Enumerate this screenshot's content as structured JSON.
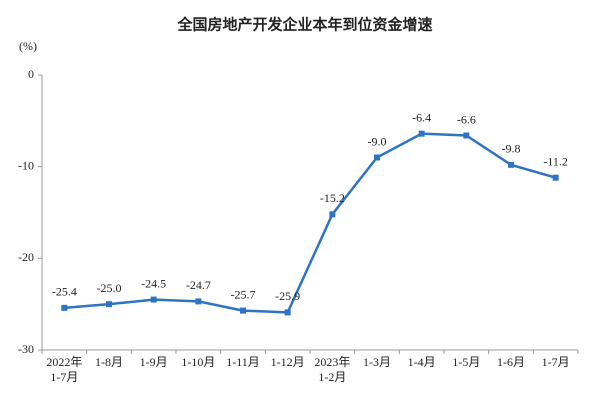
{
  "chart_data": {
    "type": "line",
    "title": "全国房地产开发企业本年到位资金增速",
    "y_unit": "(%)",
    "categories": [
      [
        "2022年",
        "1-7月"
      ],
      [
        "1-8月"
      ],
      [
        "1-9月"
      ],
      [
        "1-10月"
      ],
      [
        "1-11月"
      ],
      [
        "1-12月"
      ],
      [
        "2023年",
        "1-2月"
      ],
      [
        "1-3月"
      ],
      [
        "1-4月"
      ],
      [
        "1-5月"
      ],
      [
        "1-6月"
      ],
      [
        "1-7月"
      ]
    ],
    "values": [
      -25.4,
      -25.0,
      -24.5,
      -24.7,
      -25.7,
      -25.9,
      -15.2,
      -9.0,
      -6.4,
      -6.6,
      -9.8,
      -11.2
    ],
    "value_labels": [
      "-25.4",
      "-25.0",
      "-24.5",
      "-24.7",
      "-25.7",
      "-25.9",
      "-15.2",
      "-9.0",
      "-6.4",
      "-6.6",
      "-9.8",
      "-11.2"
    ],
    "color": "#2e74c4",
    "ylim": [
      -30,
      0
    ],
    "yticks": [
      -30,
      -20,
      -10,
      0
    ],
    "grid": false
  }
}
